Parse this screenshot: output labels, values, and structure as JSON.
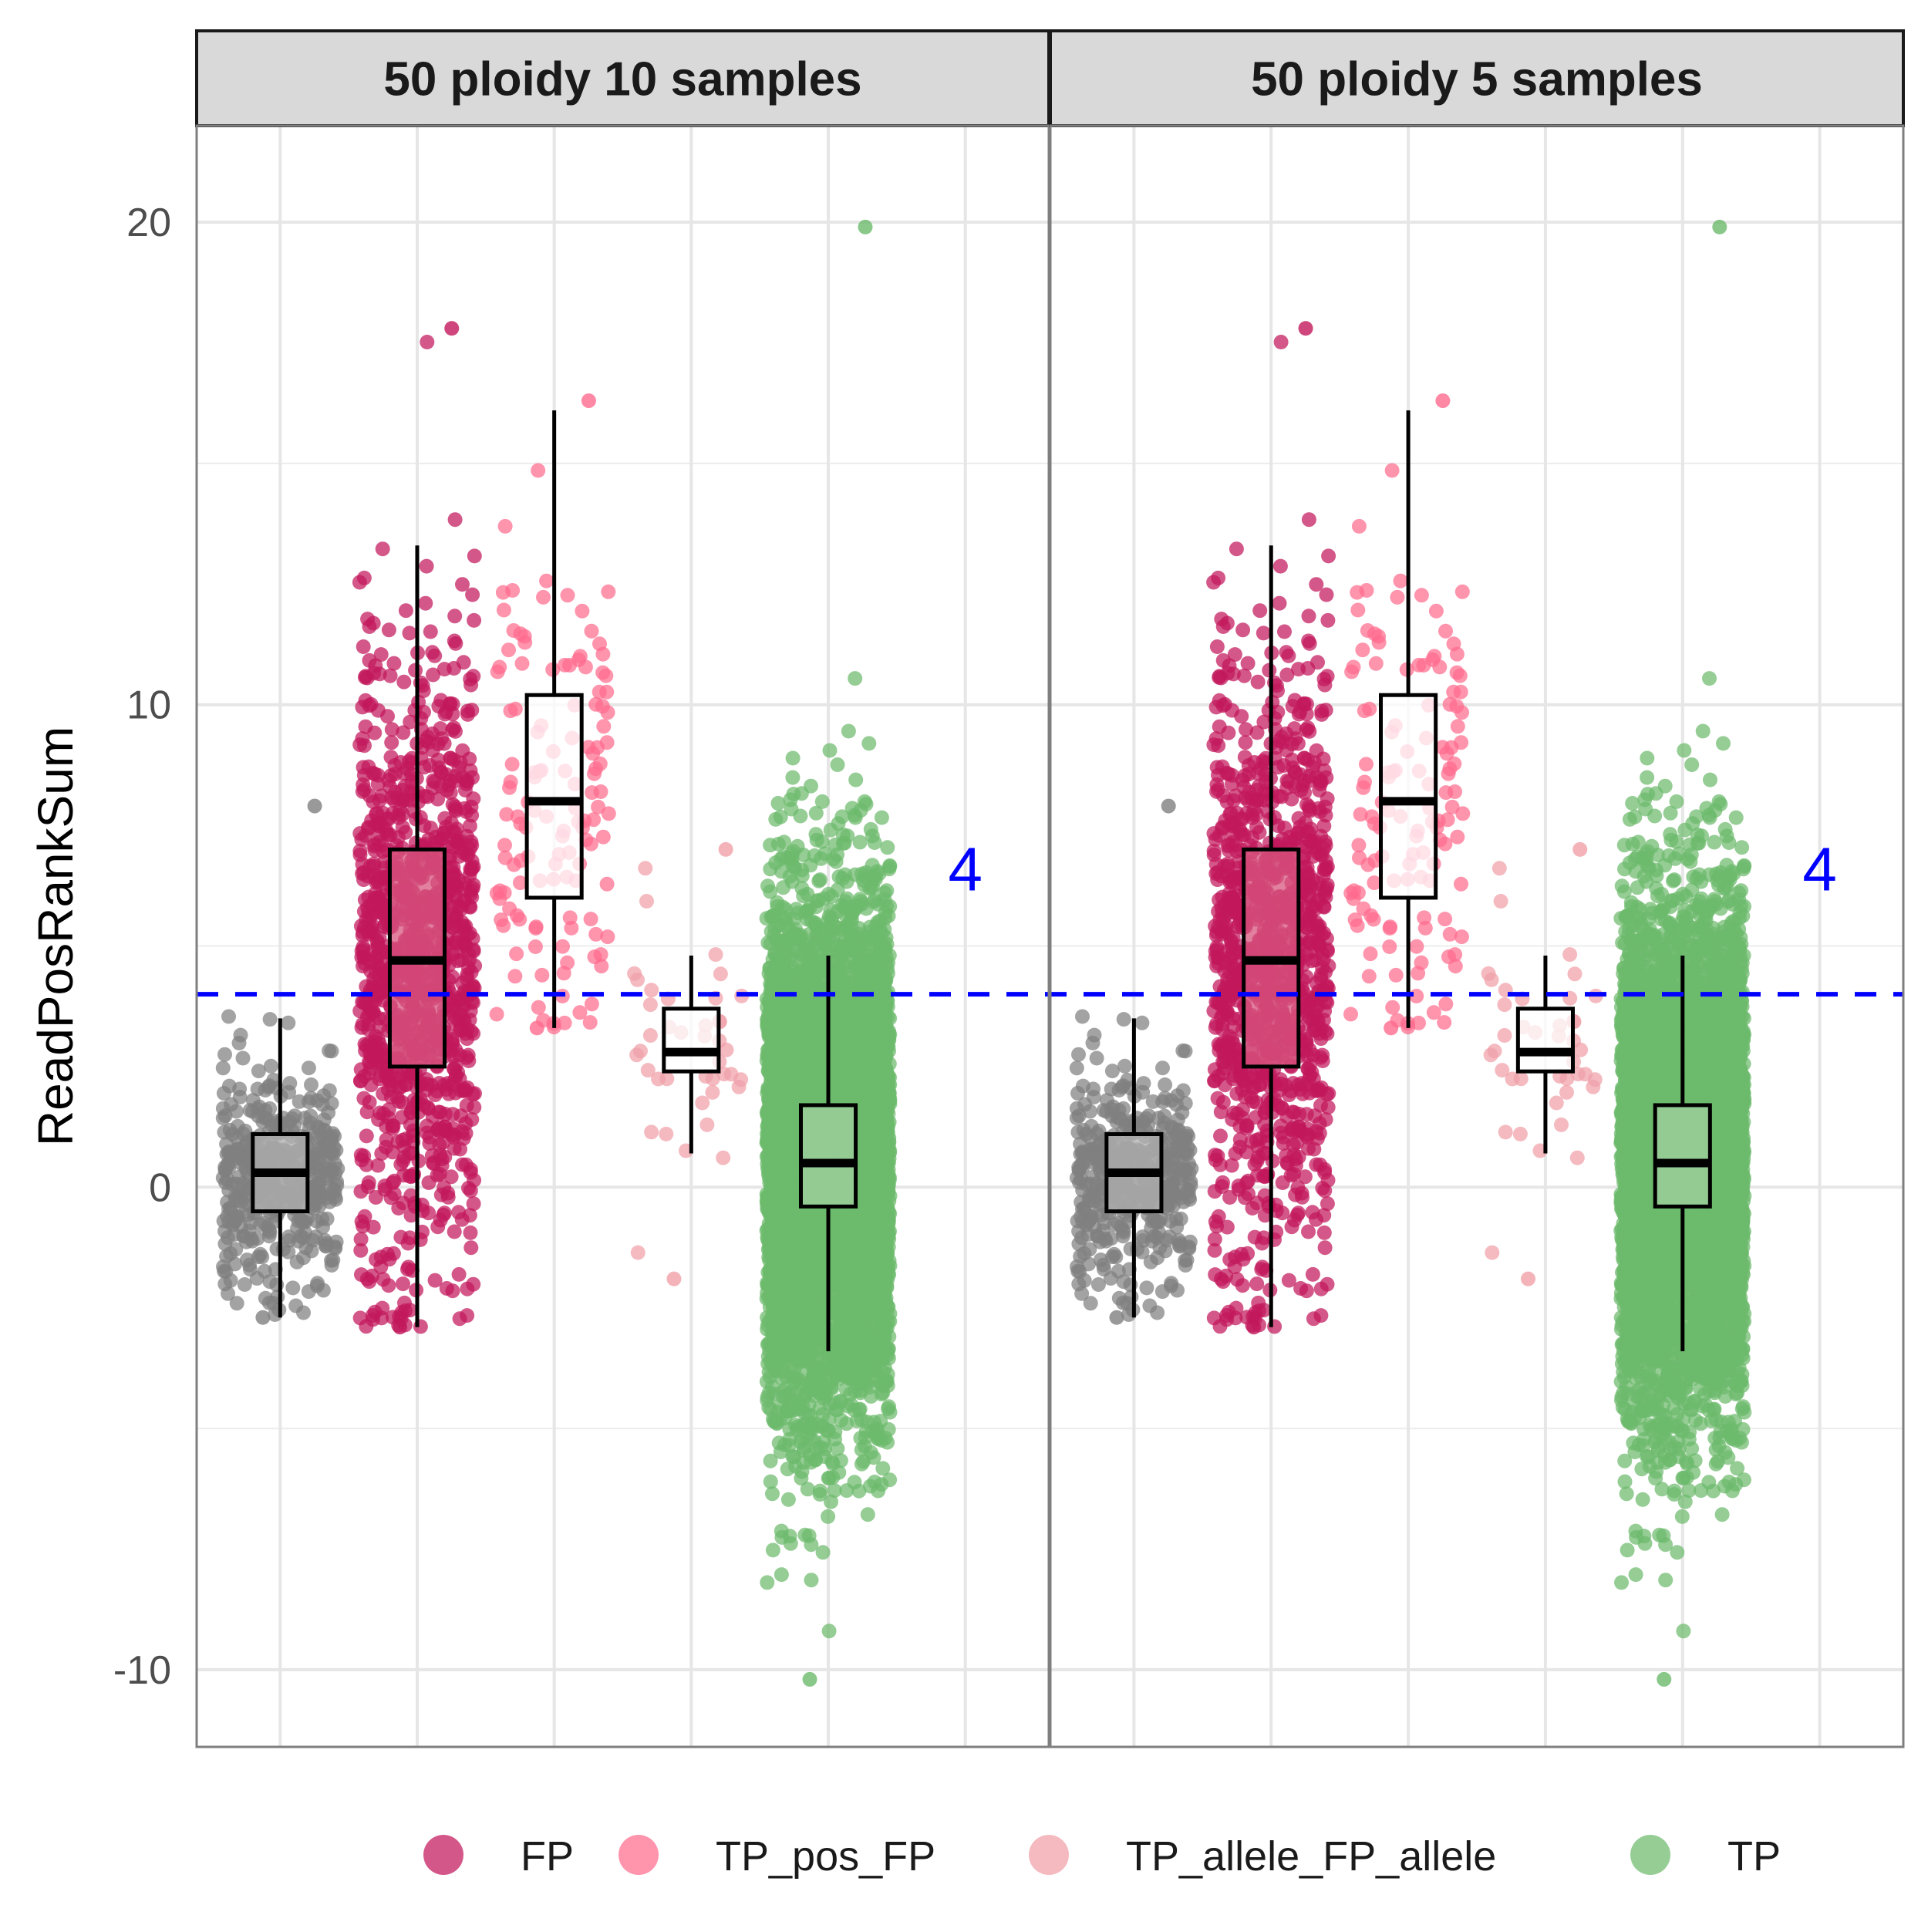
{
  "chart_data": {
    "type": "scatter",
    "subtype": "jittered points with boxplots, faceted",
    "ylabel": "ReadPosRankSum",
    "xlabel": "",
    "ylim": [
      -11.6,
      22
    ],
    "yticks": [
      -10,
      0,
      10,
      20
    ],
    "grid": true,
    "legend": {
      "position": "bottom",
      "entries": [
        "FP",
        "TP_pos_FP",
        "TP_allele_FP_allele",
        "TP"
      ]
    },
    "colors": {
      "grey": "#808080",
      "FP": "#c2185b",
      "TP_pos_FP": "#ff6b8e",
      "TP_allele_FP_allele": "#f0a0a8",
      "TP": "#6cba6c",
      "threshold": "#0000ff"
    },
    "threshold": {
      "y": 4,
      "label": "4",
      "style": "dashed"
    },
    "groups": [
      {
        "key": "grey",
        "legend": false,
        "color": "#808080",
        "jitter_width": 0.42,
        "count": 420,
        "core_mean": 0.2,
        "core_sd": 1.2,
        "y_range": [
          -2.7,
          7.9
        ],
        "box": {
          "median": 0.3,
          "q1": -0.5,
          "q3": 1.1,
          "whisker_low": -2.7,
          "whisker_high": 3.5,
          "fill": "#b0b0b0"
        }
      },
      {
        "key": "FP",
        "legend": true,
        "color": "#c2185b",
        "jitter_width": 0.42,
        "count": 1100,
        "core_mean": 4.6,
        "core_sd": 3.1,
        "y_range": [
          -2.9,
          17.8
        ],
        "box": {
          "median": 4.7,
          "q1": 2.5,
          "q3": 7.0,
          "whisker_low": -2.9,
          "whisker_high": 13.3,
          "fill": "#d7557f"
        }
      },
      {
        "key": "TP_pos_FP",
        "legend": true,
        "color": "#ff6b8e",
        "jitter_width": 0.42,
        "count": 130,
        "core_mean": 8.0,
        "core_sd": 3.0,
        "y_range": [
          3.3,
          16.3
        ],
        "box": {
          "median": 8.0,
          "q1": 6.0,
          "q3": 10.2,
          "whisker_low": 3.3,
          "whisker_high": 16.1,
          "fill": "#ffffff"
        }
      },
      {
        "key": "TP_allele_FP_allele",
        "legend": true,
        "color": "#f0a0a8",
        "jitter_width": 0.42,
        "count": 40,
        "core_mean": 2.8,
        "core_sd": 1.4,
        "y_range": [
          -1.9,
          7.0
        ],
        "box": {
          "median": 2.8,
          "q1": 2.4,
          "q3": 3.7,
          "whisker_low": 0.7,
          "whisker_high": 4.8,
          "fill": "#ffffff"
        }
      },
      {
        "key": "TP",
        "legend": true,
        "color": "#6cba6c",
        "jitter_width": 0.45,
        "count": 5200,
        "core_mean": 0.6,
        "core_sd": 2.6,
        "y_range": [
          -10.2,
          19.9
        ],
        "box": {
          "median": 0.5,
          "q1": -0.4,
          "q3": 1.7,
          "whisker_low": -3.4,
          "whisker_high": 4.8,
          "fill": "#a0d0a0"
        }
      }
    ],
    "facets": [
      {
        "title": "50 ploidy 10 samples"
      },
      {
        "title": "50 ploidy 5 samples"
      }
    ]
  }
}
